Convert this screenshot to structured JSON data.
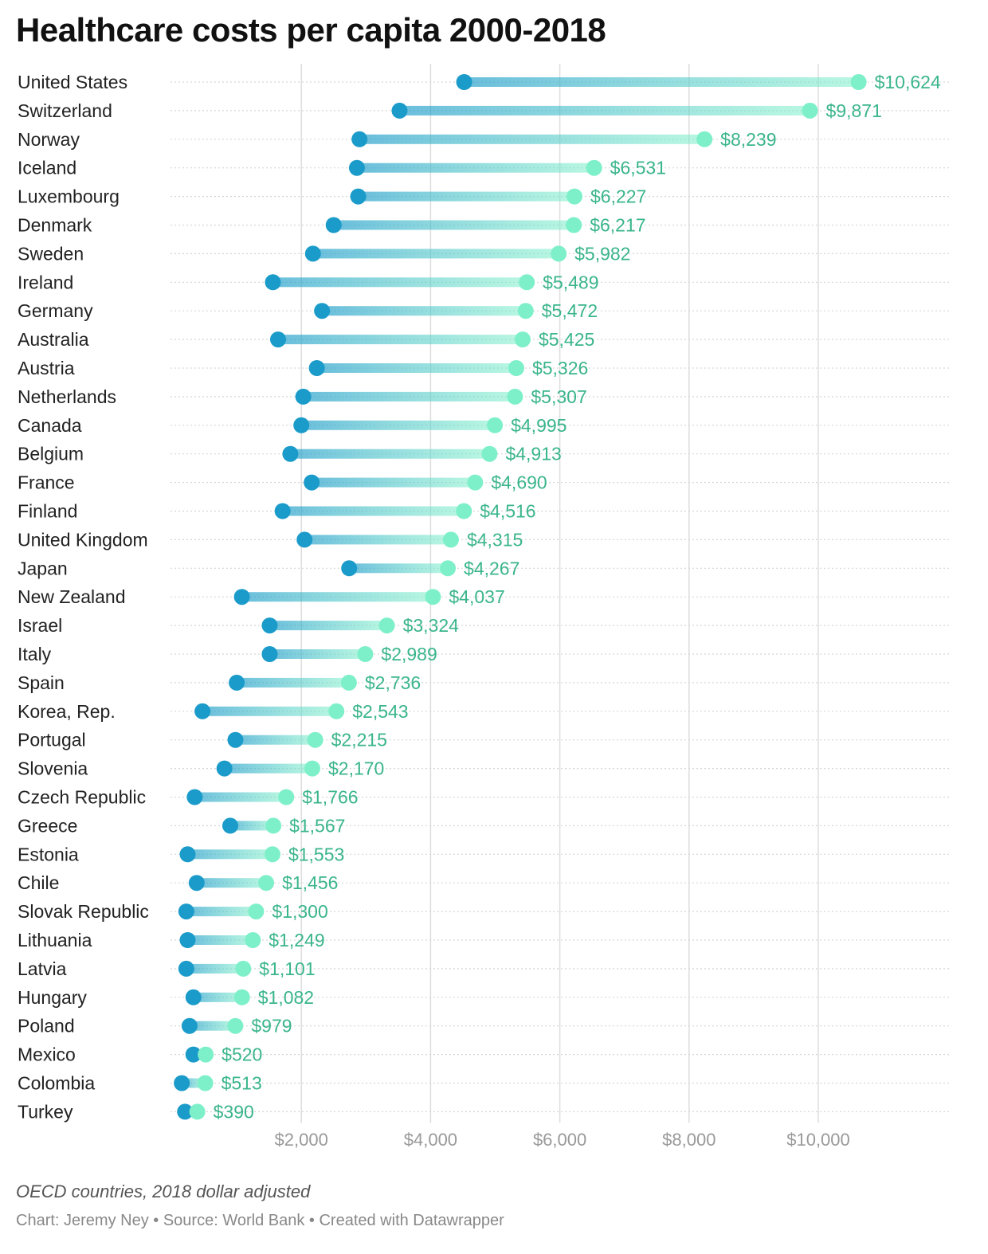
{
  "title": "Healthcare costs per capita 2000-2018",
  "notes": "OECD countries, 2018 dollar adjusted",
  "credit": {
    "chart_by": "Chart: Jeremy Ney",
    "source": "Source: World Bank",
    "tool": "Created with Datawrapper",
    "separator": " • "
  },
  "colors": {
    "start_dot": "#1a9bc9",
    "end_dot": "#7ef0c9",
    "value_label": "#3ab58c",
    "grid": "#dddddd",
    "tick_label": "#999999"
  },
  "chart_data": {
    "type": "range-dot",
    "title": "Healthcare costs per capita 2000-2018",
    "x_range": [
      0,
      12000
    ],
    "x_ticks": [
      2000,
      4000,
      6000,
      8000,
      10000
    ],
    "x_tick_labels": [
      "$2,000",
      "$4,000",
      "$6,000",
      "$8,000",
      "$10,000"
    ],
    "series": [
      {
        "role": "start",
        "year": 2000
      },
      {
        "role": "end",
        "year": 2018
      }
    ],
    "rows": [
      {
        "country": "United States",
        "start": 4520,
        "end": 10624,
        "label": "$10,624"
      },
      {
        "country": "Switzerland",
        "start": 3520,
        "end": 9871,
        "label": "$9,871"
      },
      {
        "country": "Norway",
        "start": 2900,
        "end": 8239,
        "label": "$8,239"
      },
      {
        "country": "Iceland",
        "start": 2860,
        "end": 6531,
        "label": "$6,531"
      },
      {
        "country": "Luxembourg",
        "start": 2880,
        "end": 6227,
        "label": "$6,227"
      },
      {
        "country": "Denmark",
        "start": 2500,
        "end": 6217,
        "label": "$6,217"
      },
      {
        "country": "Sweden",
        "start": 2180,
        "end": 5982,
        "label": "$5,982"
      },
      {
        "country": "Ireland",
        "start": 1560,
        "end": 5489,
        "label": "$5,489"
      },
      {
        "country": "Germany",
        "start": 2320,
        "end": 5472,
        "label": "$5,472"
      },
      {
        "country": "Australia",
        "start": 1640,
        "end": 5425,
        "label": "$5,425"
      },
      {
        "country": "Austria",
        "start": 2240,
        "end": 5326,
        "label": "$5,326"
      },
      {
        "country": "Netherlands",
        "start": 2030,
        "end": 5307,
        "label": "$5,307"
      },
      {
        "country": "Canada",
        "start": 2000,
        "end": 4995,
        "label": "$4,995"
      },
      {
        "country": "Belgium",
        "start": 1830,
        "end": 4913,
        "label": "$4,913"
      },
      {
        "country": "France",
        "start": 2160,
        "end": 4690,
        "label": "$4,690"
      },
      {
        "country": "Finland",
        "start": 1710,
        "end": 4516,
        "label": "$4,516"
      },
      {
        "country": "United Kingdom",
        "start": 2050,
        "end": 4315,
        "label": "$4,315"
      },
      {
        "country": "Japan",
        "start": 2740,
        "end": 4267,
        "label": "$4,267"
      },
      {
        "country": "New Zealand",
        "start": 1080,
        "end": 4037,
        "label": "$4,037"
      },
      {
        "country": "Israel",
        "start": 1510,
        "end": 3324,
        "label": "$3,324"
      },
      {
        "country": "Italy",
        "start": 1510,
        "end": 2989,
        "label": "$2,989"
      },
      {
        "country": "Spain",
        "start": 1000,
        "end": 2736,
        "label": "$2,736"
      },
      {
        "country": "Korea, Rep.",
        "start": 470,
        "end": 2543,
        "label": "$2,543"
      },
      {
        "country": "Portugal",
        "start": 980,
        "end": 2215,
        "label": "$2,215"
      },
      {
        "country": "Slovenia",
        "start": 810,
        "end": 2170,
        "label": "$2,170"
      },
      {
        "country": "Czech Republic",
        "start": 350,
        "end": 1766,
        "label": "$1,766"
      },
      {
        "country": "Greece",
        "start": 900,
        "end": 1567,
        "label": "$1,567"
      },
      {
        "country": "Estonia",
        "start": 240,
        "end": 1553,
        "label": "$1,553"
      },
      {
        "country": "Chile",
        "start": 380,
        "end": 1456,
        "label": "$1,456"
      },
      {
        "country": "Slovak Republic",
        "start": 220,
        "end": 1300,
        "label": "$1,300"
      },
      {
        "country": "Lithuania",
        "start": 240,
        "end": 1249,
        "label": "$1,249"
      },
      {
        "country": "Latvia",
        "start": 220,
        "end": 1101,
        "label": "$1,101"
      },
      {
        "country": "Hungary",
        "start": 330,
        "end": 1082,
        "label": "$1,082"
      },
      {
        "country": "Poland",
        "start": 270,
        "end": 979,
        "label": "$979"
      },
      {
        "country": "Mexico",
        "start": 330,
        "end": 520,
        "label": "$520"
      },
      {
        "country": "Colombia",
        "start": 150,
        "end": 513,
        "label": "$513"
      },
      {
        "country": "Turkey",
        "start": 200,
        "end": 390,
        "label": "$390"
      }
    ]
  }
}
